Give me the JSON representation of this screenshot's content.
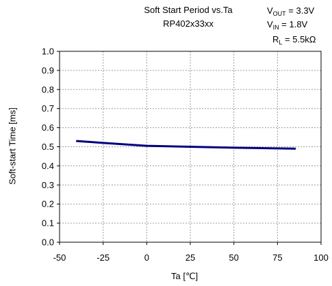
{
  "chart_data": {
    "type": "line",
    "title_line1": "Soft Start Period vs.Ta",
    "title_line2": "RP402x33xx",
    "conditions": [
      {
        "sym": "V",
        "sub": "OUT",
        "rest": " = 3.3V"
      },
      {
        "sym": "V",
        "sub": "IN",
        "rest": " = 1.8V"
      },
      {
        "sym": "R",
        "sub": "L",
        "rest": " =  5.5kΩ"
      }
    ],
    "xlabel": "Ta [℃]",
    "ylabel": "Soft-start Time [ms]",
    "xlim": [
      -50,
      100
    ],
    "ylim": [
      0.0,
      1.0
    ],
    "xticks": [
      -50,
      -25,
      0,
      25,
      50,
      75,
      100
    ],
    "yticks": [
      0.0,
      0.1,
      0.2,
      0.3,
      0.4,
      0.5,
      0.6,
      0.7,
      0.8,
      0.9,
      1.0
    ],
    "grid": true,
    "series": [
      {
        "color": "#000080",
        "x": [
          -40,
          -25,
          0,
          25,
          50,
          85
        ],
        "y": [
          0.53,
          0.52,
          0.505,
          0.5,
          0.495,
          0.49
        ]
      }
    ]
  }
}
